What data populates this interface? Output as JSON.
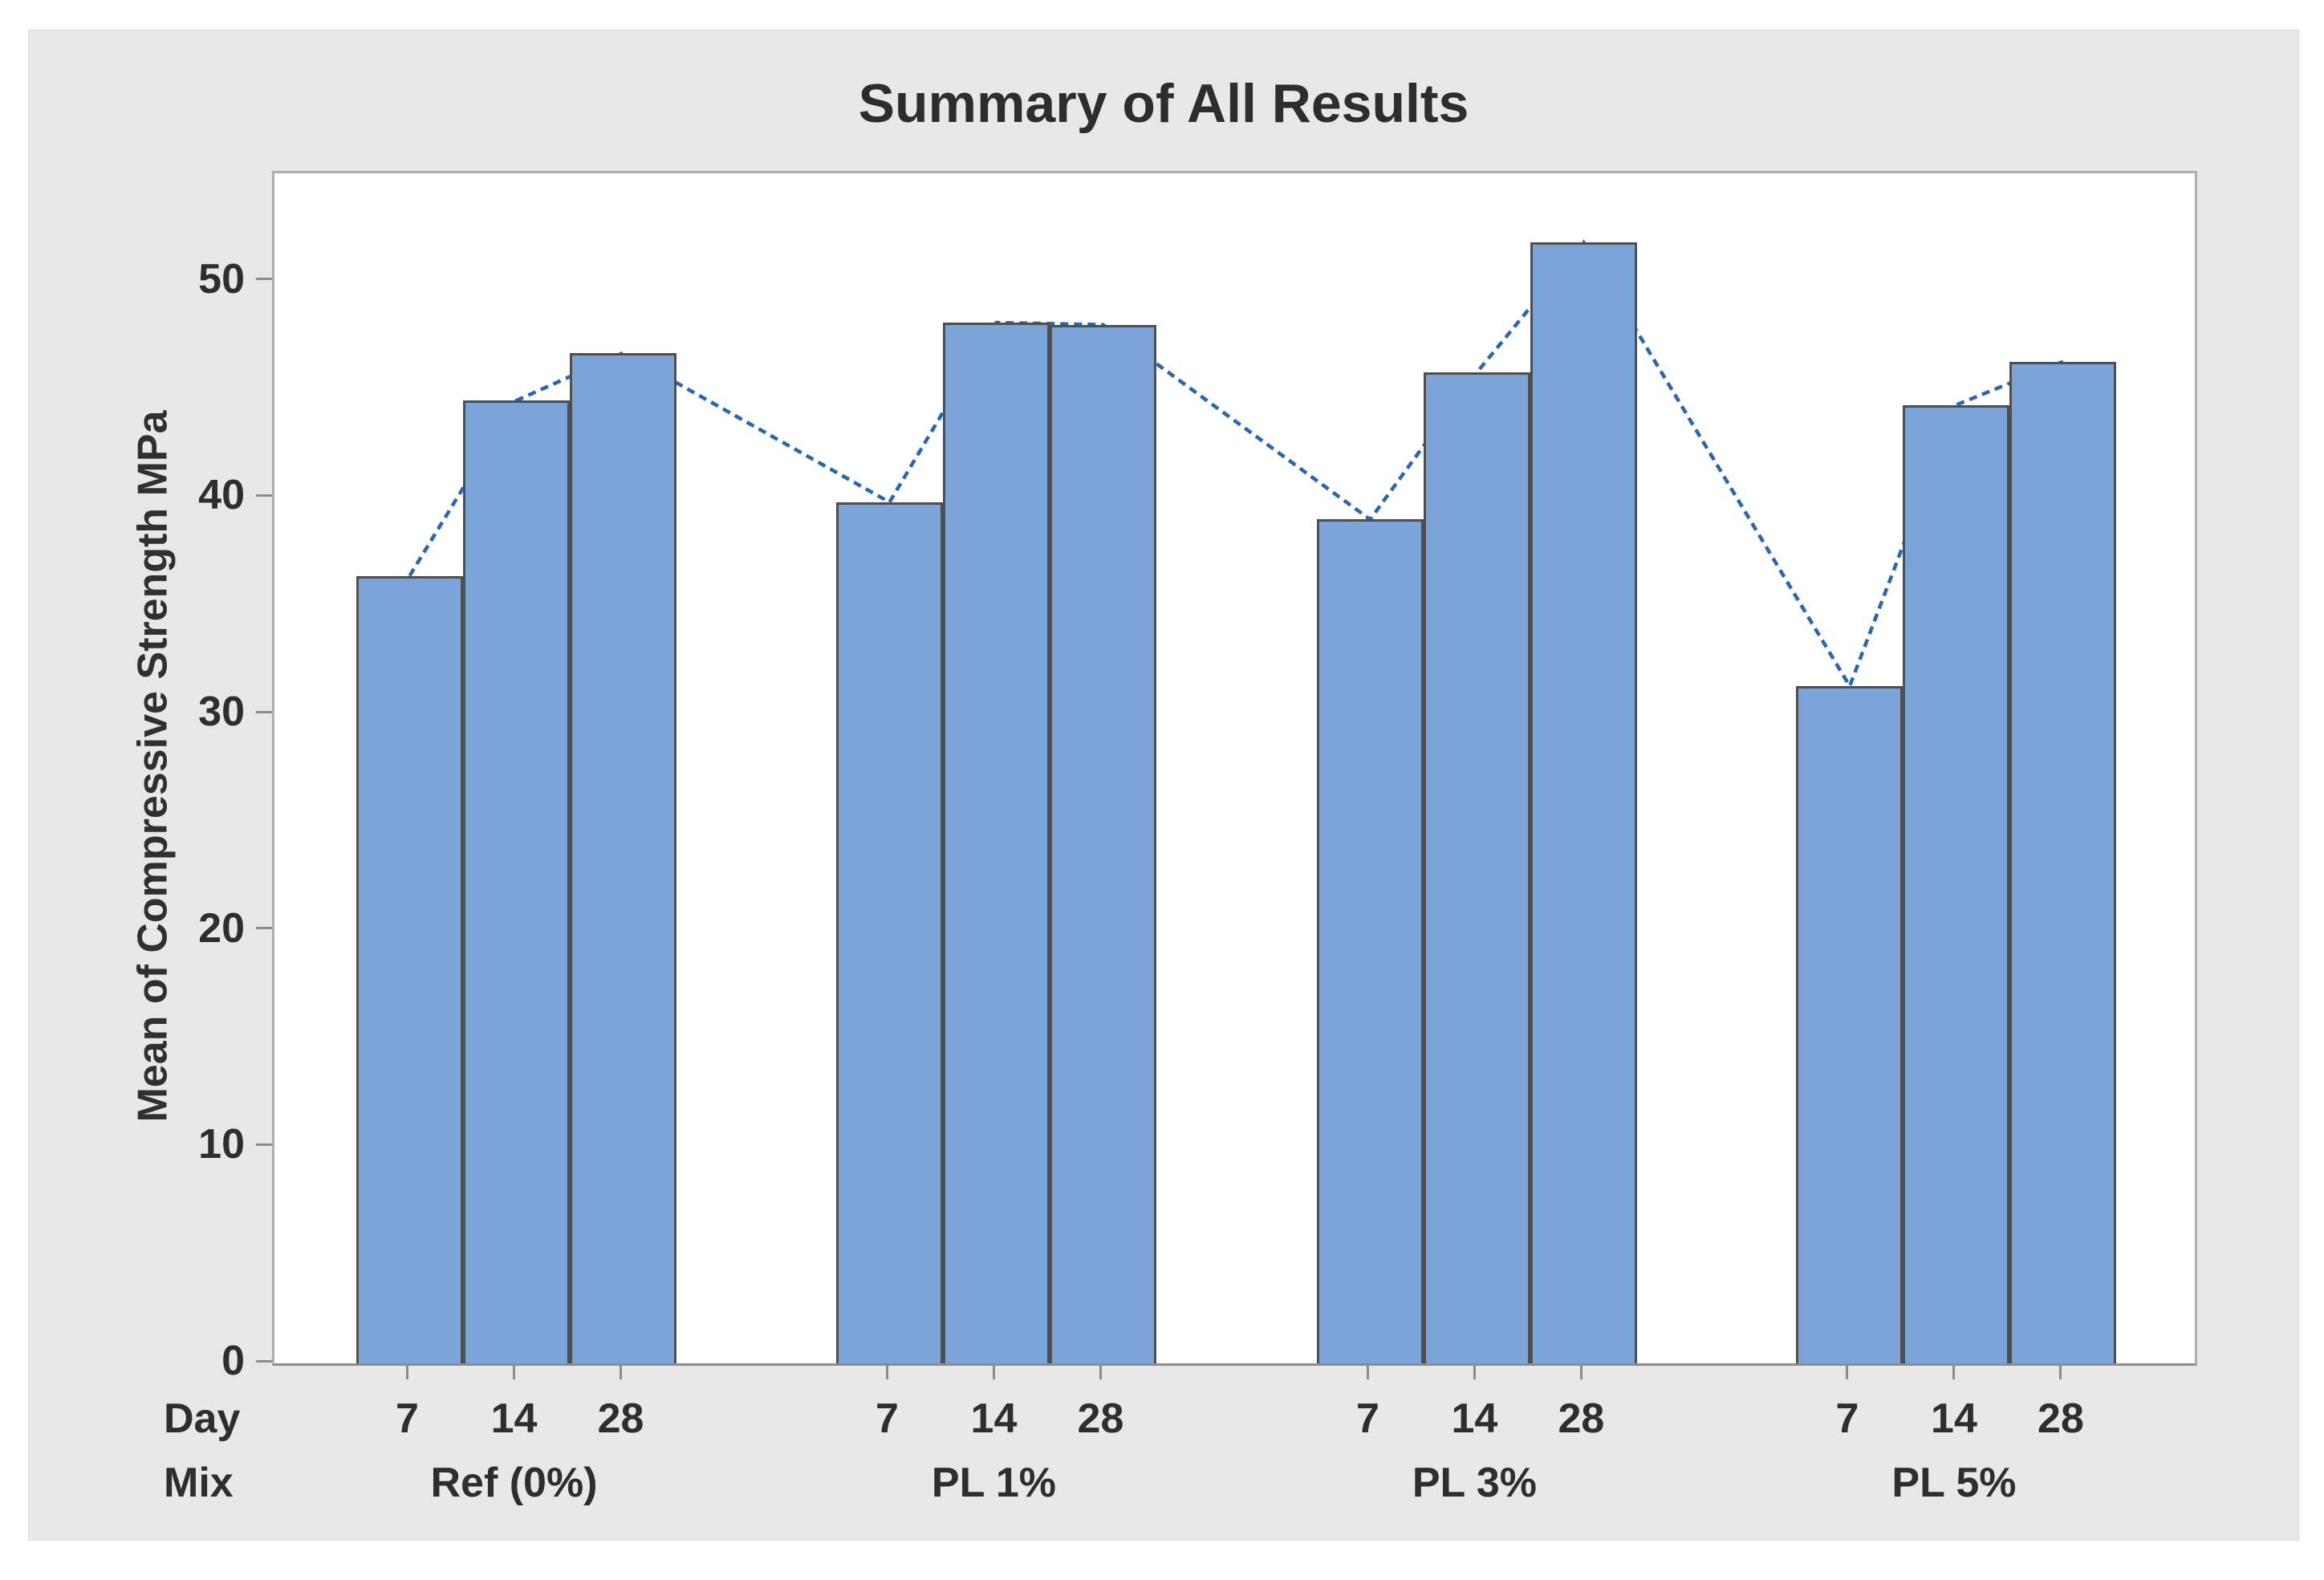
{
  "chart_data": {
    "type": "bar",
    "title": "Summary of All Results",
    "ylabel": "Mean of Compressive Strength MPa",
    "xlabel_rows": [
      "Day",
      "Mix"
    ],
    "ylim": [
      0,
      55
    ],
    "yticks": [
      0,
      10,
      20,
      30,
      40,
      50
    ],
    "grid": false,
    "legend_position": "none",
    "groups": [
      {
        "mix": "Ref (0%)",
        "days": [
          "7",
          "14",
          "28"
        ],
        "values": [
          36.4,
          44.5,
          46.7
        ]
      },
      {
        "mix": "PL 1%",
        "days": [
          "7",
          "14",
          "28"
        ],
        "values": [
          39.8,
          48.1,
          48.0
        ]
      },
      {
        "mix": "PL 3%",
        "days": [
          "7",
          "14",
          "28"
        ],
        "values": [
          39.0,
          45.8,
          51.8
        ]
      },
      {
        "mix": "PL 5%",
        "days": [
          "7",
          "14",
          "28"
        ],
        "values": [
          31.3,
          44.3,
          46.3
        ]
      }
    ],
    "overlay_line_series": {
      "name": "mean-connect-line",
      "style": "dashed",
      "values": [
        36.4,
        44.5,
        46.7,
        39.8,
        48.1,
        48.0,
        39.0,
        45.8,
        51.8,
        31.3,
        44.3,
        46.3
      ]
    }
  },
  "colors": {
    "bar_fill": "#7ba5d9",
    "bar_border": "#4f4f4f",
    "line": "#2a65b0",
    "panel_bg": "#e8e8e8",
    "plot_bg": "#ffffff",
    "plot_border": "#aeaeae",
    "axis": "#8c8c8c",
    "text": "#2e2e2e"
  }
}
